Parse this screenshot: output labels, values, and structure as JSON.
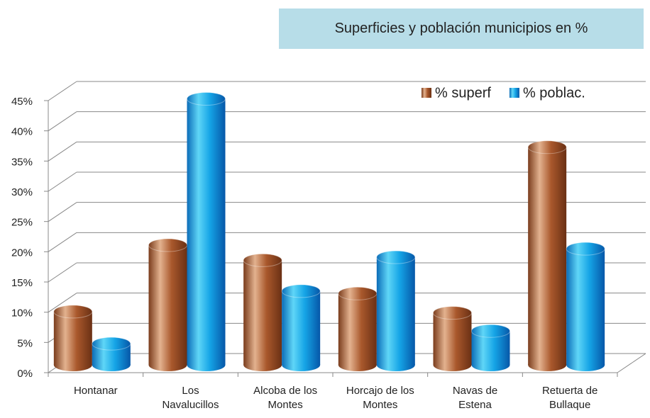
{
  "chart_data": {
    "type": "bar3d",
    "title": "Superficies y población municipios en %",
    "categories": [
      "Hontanar",
      "Los\nNavalucillos",
      "Alcoba de los\nMontes",
      "Horcajo de los\nMontes",
      "Navas de\nEstena",
      "Retuerta de\nBullaque"
    ],
    "series": [
      {
        "name": "% superf",
        "color": "#a0522d",
        "values": [
          8.8,
          19.8,
          17.3,
          11.8,
          8.6,
          36
        ]
      },
      {
        "name": "% poblac.",
        "color": "#1a9ee0",
        "values": [
          3.5,
          44,
          12.2,
          17.8,
          5.6,
          19.2
        ]
      }
    ],
    "ylim": [
      0,
      45
    ],
    "yticks": [
      {
        "value": 0,
        "label": "0%"
      },
      {
        "value": 5,
        "label": "5%"
      },
      {
        "value": 10,
        "label": "10%"
      },
      {
        "value": 15,
        "label": "15%"
      },
      {
        "value": 20,
        "label": "20%"
      },
      {
        "value": 25,
        "label": "25%"
      },
      {
        "value": 30,
        "label": "30%"
      },
      {
        "value": 35,
        "label": "35%"
      },
      {
        "value": 40,
        "label": "40%"
      },
      {
        "value": 45,
        "label": "45%"
      }
    ],
    "grid": true,
    "legend": "top-right"
  }
}
